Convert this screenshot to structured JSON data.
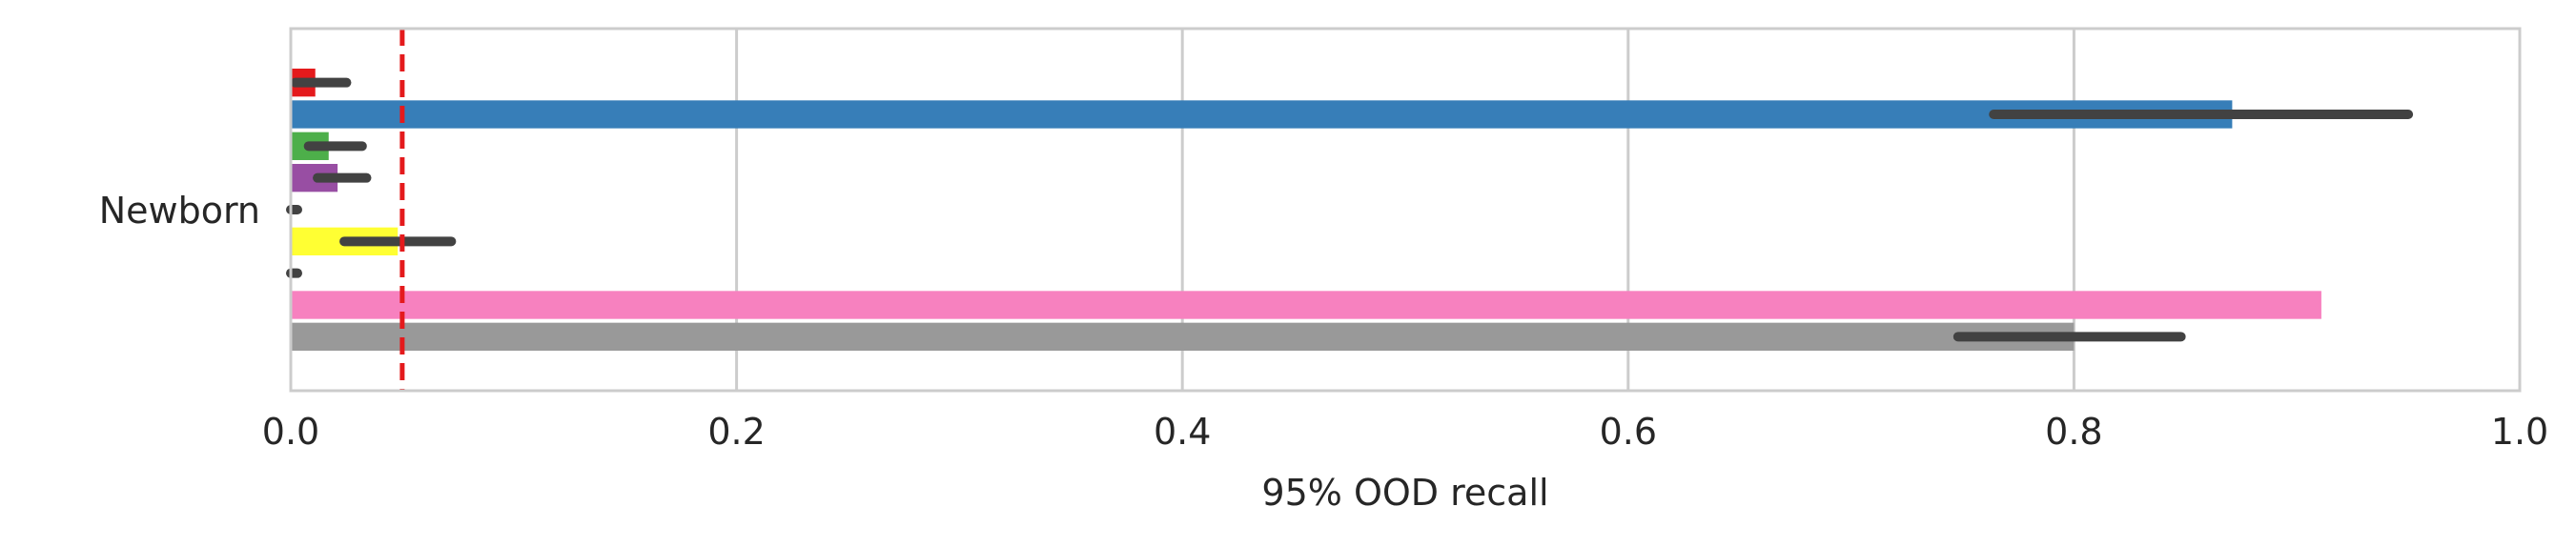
{
  "chart_data": {
    "type": "bar",
    "orientation": "horizontal",
    "categories": [
      "Newborn"
    ],
    "series": [
      {
        "values": [
          0.011
        ],
        "ci": [
          [
            0.002,
            0.025
          ]
        ],
        "color": "#e41a1c"
      },
      {
        "values": [
          0.871
        ],
        "ci": [
          [
            0.764,
            0.95
          ]
        ],
        "color": "#377eb8"
      },
      {
        "values": [
          0.017
        ],
        "ci": [
          [
            0.008,
            0.032
          ]
        ],
        "color": "#4daf4a"
      },
      {
        "values": [
          0.021
        ],
        "ci": [
          [
            0.012,
            0.034
          ]
        ],
        "color": "#984ea3"
      },
      {
        "values": [
          0.0
        ],
        "ci": [
          [
            0.0,
            0.003
          ]
        ],
        "color": "#ff7f00"
      },
      {
        "values": [
          0.048
        ],
        "ci": [
          [
            0.024,
            0.072
          ]
        ],
        "color": "#ffff33"
      },
      {
        "values": [
          0.0
        ],
        "ci": [
          [
            0.0,
            0.003
          ]
        ],
        "color": "#a65628"
      },
      {
        "values": [
          0.911
        ],
        "ci": [
          [
            0.911,
            0.911
          ]
        ],
        "color": "#f781bf"
      },
      {
        "values": [
          0.8
        ],
        "ci": [
          [
            0.748,
            0.848
          ]
        ],
        "color": "#999999"
      }
    ],
    "xlabel": "95% OOD recall",
    "ylabel": "",
    "xlim": [
      0.0,
      1.0
    ],
    "x_ticks": [
      "0.0",
      "0.2",
      "0.4",
      "0.6",
      "0.8",
      "1.0"
    ],
    "reference_line": {
      "x": 0.05,
      "color": "#e41a1c",
      "style": "dashed"
    },
    "grid": true,
    "grid_axis": "x",
    "legend": "none"
  }
}
